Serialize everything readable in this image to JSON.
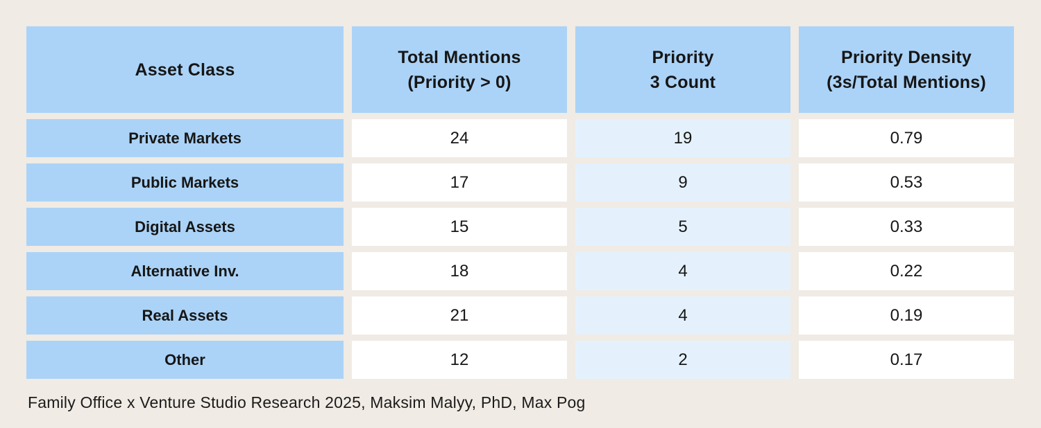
{
  "colors": {
    "page_background": "#f0ebe4",
    "header_and_label_blue": "#abd3f7",
    "highlight_cell_blue": "#e4f1fd",
    "value_cell_white": "#ffffff",
    "text": "#161616"
  },
  "table": {
    "headers": [
      {
        "line1": "Asset Class",
        "line2": ""
      },
      {
        "line1": "Total Mentions",
        "line2": "(Priority > 0)"
      },
      {
        "line1": "Priority",
        "line2": "3 Count"
      },
      {
        "line1": "Priority Density",
        "line2": "(3s/Total Mentions)"
      }
    ]
  },
  "chart_data": {
    "type": "table",
    "columns": [
      "Asset Class",
      "Total Mentions (Priority > 0)",
      "Priority 3 Count",
      "Priority Density (3s/Total Mentions)"
    ],
    "rows": [
      [
        "Private Markets",
        24,
        19,
        "0.79"
      ],
      [
        "Public Markets",
        17,
        9,
        "0.53"
      ],
      [
        "Digital Assets",
        15,
        5,
        "0.33"
      ],
      [
        "Alternative Inv.",
        18,
        4,
        "0.22"
      ],
      [
        "Real Assets",
        21,
        4,
        "0.19"
      ],
      [
        "Other",
        12,
        2,
        "0.17"
      ]
    ],
    "source": "Family Office x Venture Studio Research 2025, Maksim Malyy, PhD, Max Pog"
  },
  "footer": {
    "source": "Family Office x Venture Studio Research 2025, Maksim Malyy, PhD, Max Pog"
  }
}
